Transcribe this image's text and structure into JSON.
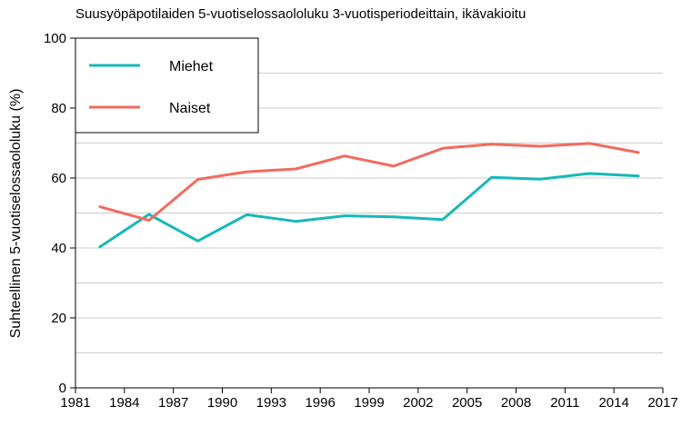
{
  "chart_data": {
    "type": "line",
    "title": "Suusyöpäpotilaiden 5-vuotiselossaololuku 3-vuotisperiodeittain, ikävakioitu",
    "xlabel": "",
    "ylabel": "Suhteellinen 5-vuotiselossaololuku (%)",
    "xlim": [
      1981,
      2017
    ],
    "ylim": [
      0,
      100
    ],
    "x_ticks": [
      "1981",
      "1984",
      "1987",
      "1990",
      "1993",
      "1996",
      "1999",
      "2002",
      "2005",
      "2008",
      "2011",
      "2014",
      "2017"
    ],
    "y_ticks": [
      "0",
      "20",
      "40",
      "60",
      "80",
      "100"
    ],
    "grid": "horizontal",
    "legend_position": "top-left",
    "x": [
      1982.5,
      1985.5,
      1988.5,
      1991.5,
      1994.5,
      1997.5,
      2000.5,
      2003.5,
      2006.5,
      2009.5,
      2012.5,
      2015.5
    ],
    "series": [
      {
        "name": "Miehet",
        "color": "#17b8b8",
        "values": [
          40.3,
          49.6,
          42.0,
          49.5,
          47.6,
          49.2,
          48.9,
          48.1,
          60.2,
          59.7,
          61.3,
          60.6
        ]
      },
      {
        "name": "Naiset",
        "color": "#f26b5e",
        "values": [
          51.8,
          47.9,
          59.6,
          61.8,
          62.6,
          66.3,
          63.4,
          68.5,
          69.7,
          69.1,
          69.9,
          67.3
        ]
      }
    ]
  }
}
